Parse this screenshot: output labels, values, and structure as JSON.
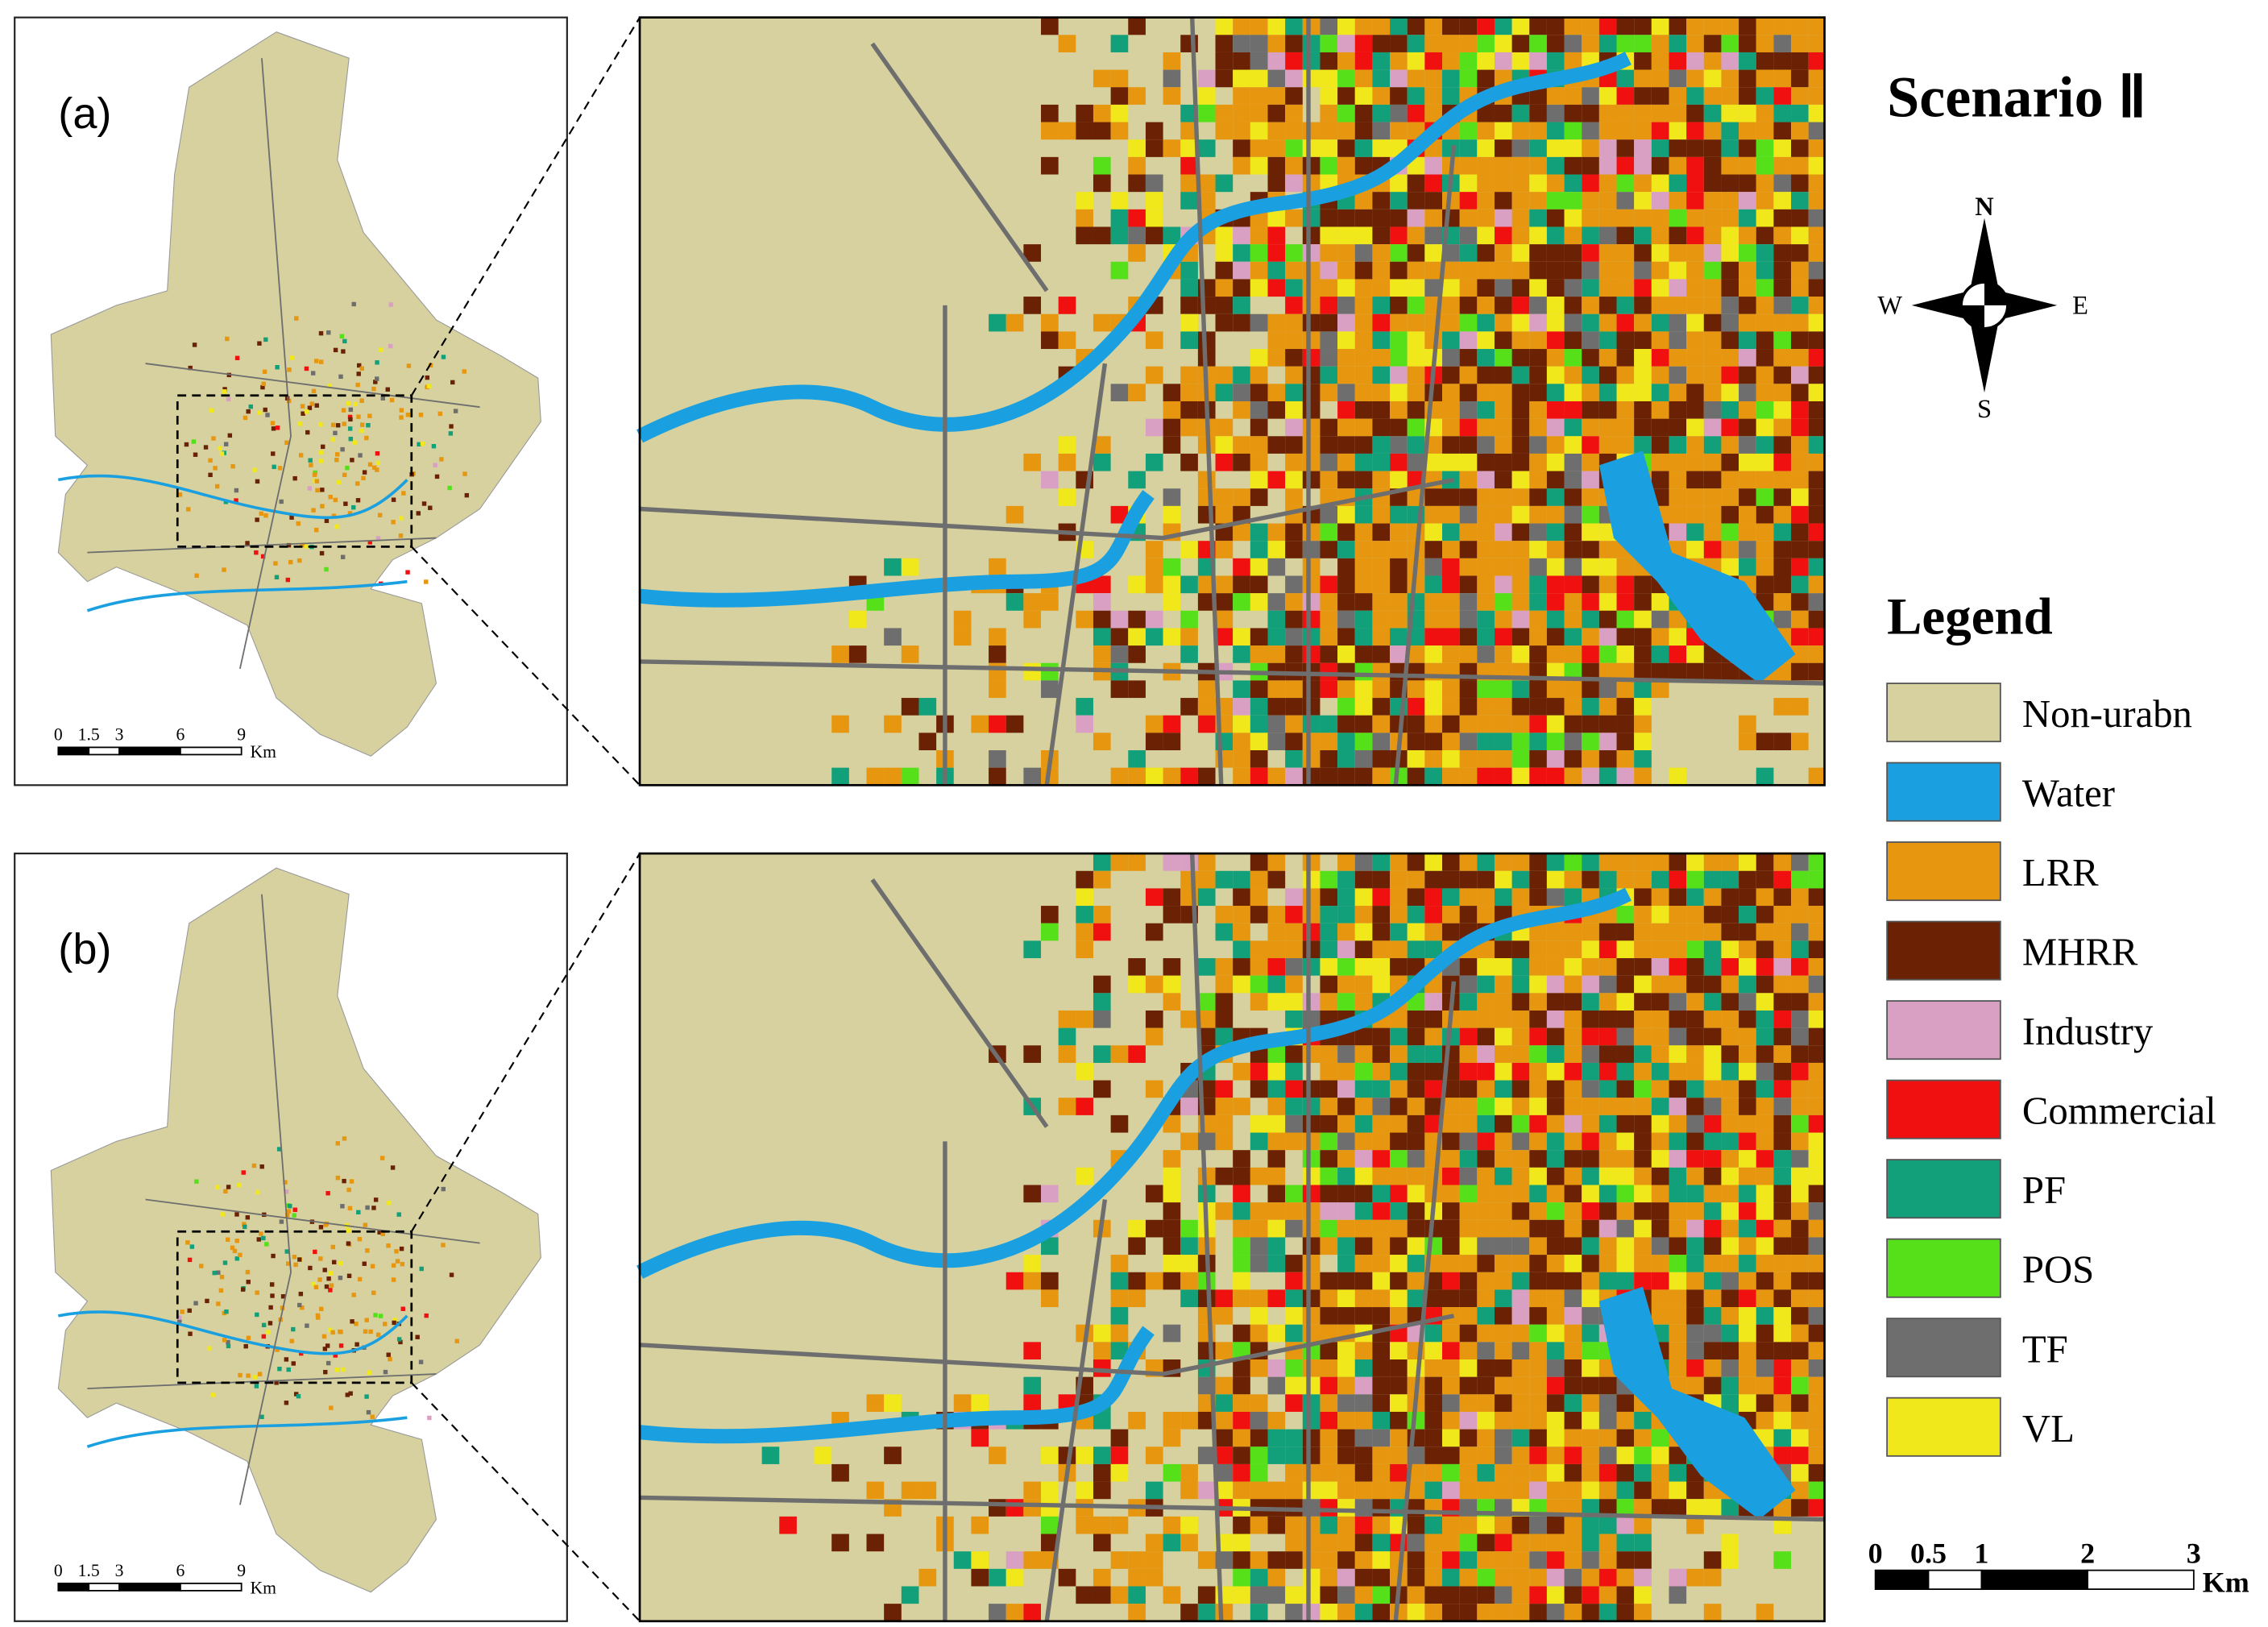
{
  "title": "Scenario Ⅱ",
  "panels": [
    {
      "label": "(a)"
    },
    {
      "label": "(b)"
    }
  ],
  "compass": {
    "n": "N",
    "s": "S",
    "w": "W",
    "e": "E"
  },
  "legend": {
    "title": "Legend",
    "items": [
      {
        "name": "Non-urabn",
        "color": "#d6d19e"
      },
      {
        "name": "Water",
        "color": "#1aa0e0"
      },
      {
        "name": "LRR",
        "color": "#e6960f"
      },
      {
        "name": "MHRR",
        "color": "#6b2204"
      },
      {
        "name": "Industry",
        "color": "#d9a0c4"
      },
      {
        "name": "Commercial",
        "color": "#f01010"
      },
      {
        "name": "PF",
        "color": "#12a07a"
      },
      {
        "name": "POS",
        "color": "#55e01a"
      },
      {
        "name": "TF",
        "color": "#6e6e6e"
      },
      {
        "name": "VL",
        "color": "#f0e81a"
      }
    ]
  },
  "small_scale": {
    "labels": [
      "0",
      "1.5",
      "3",
      "6",
      "9"
    ],
    "unit": "Km"
  },
  "large_scale": {
    "labels": [
      "0",
      "0.5",
      "1",
      "2",
      "3"
    ],
    "unit": "Km"
  }
}
